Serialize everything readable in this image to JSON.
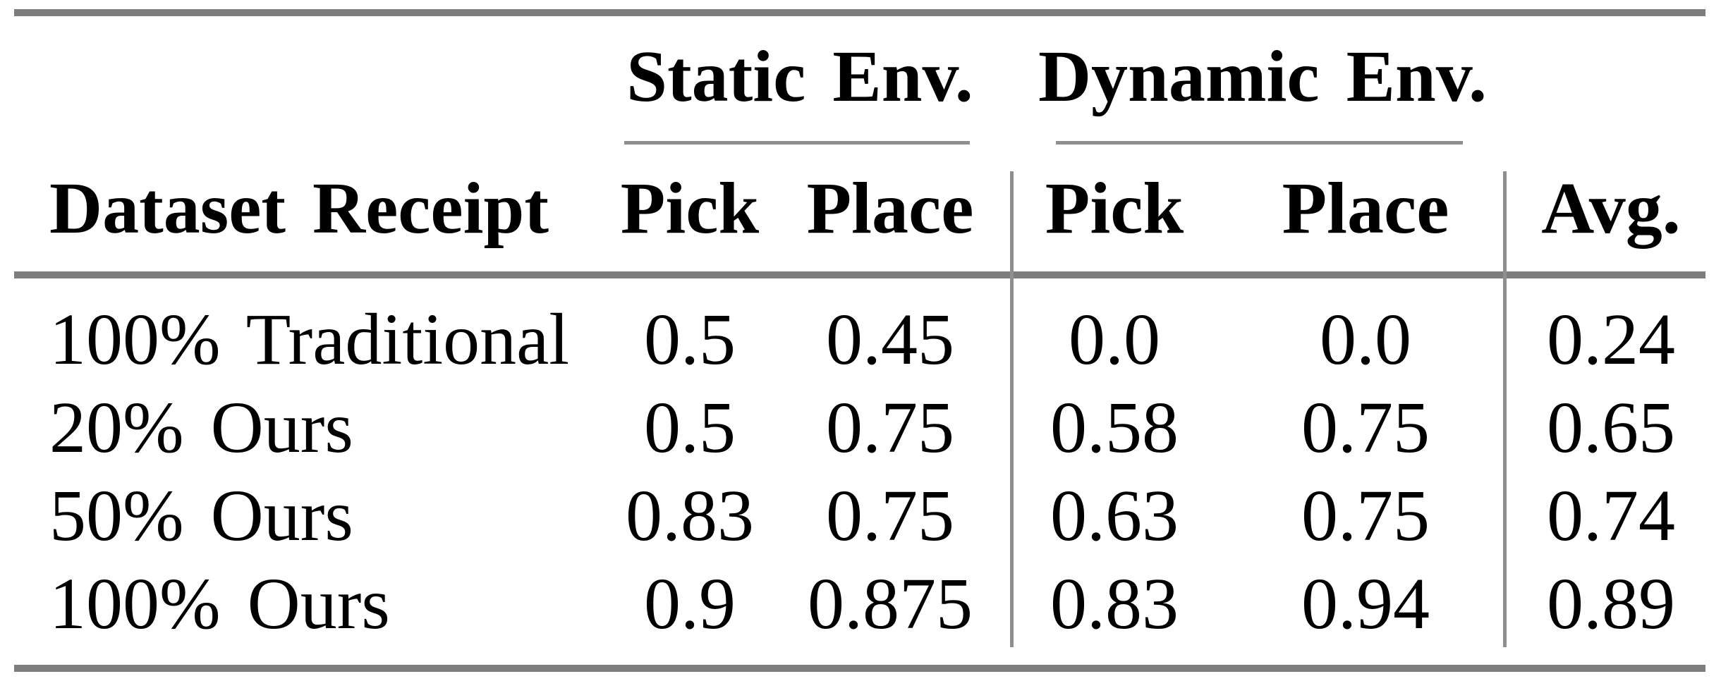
{
  "table": {
    "group_headers": {
      "static_env": "Static Env.",
      "dynamic_env": "Dynamic Env."
    },
    "column_headers": {
      "dataset": "Dataset Receipt",
      "static_pick": "Pick",
      "static_place": "Place",
      "dynamic_pick": "Pick",
      "dynamic_place": "Place",
      "avg": "Avg."
    },
    "rows": [
      {
        "label": "100% Traditional",
        "static_pick": "0.5",
        "static_place": "0.45",
        "dynamic_pick": "0.0",
        "dynamic_place": "0.0",
        "avg": "0.24"
      },
      {
        "label": "20% Ours",
        "static_pick": "0.5",
        "static_place": "0.75",
        "dynamic_pick": "0.58",
        "dynamic_place": "0.75",
        "avg": "0.65"
      },
      {
        "label": "50% Ours",
        "static_pick": "0.83",
        "static_place": "0.75",
        "dynamic_pick": "0.63",
        "dynamic_place": "0.75",
        "avg": "0.74"
      },
      {
        "label": "100% Ours",
        "static_pick": "0.9",
        "static_place": "0.875",
        "dynamic_pick": "0.83",
        "dynamic_place": "0.94",
        "avg": "0.89"
      }
    ]
  },
  "colors": {
    "rule_thick": "#7d7d7d",
    "rule_thin": "#8f8f8f",
    "text": "#000000",
    "background": "#ffffff"
  }
}
